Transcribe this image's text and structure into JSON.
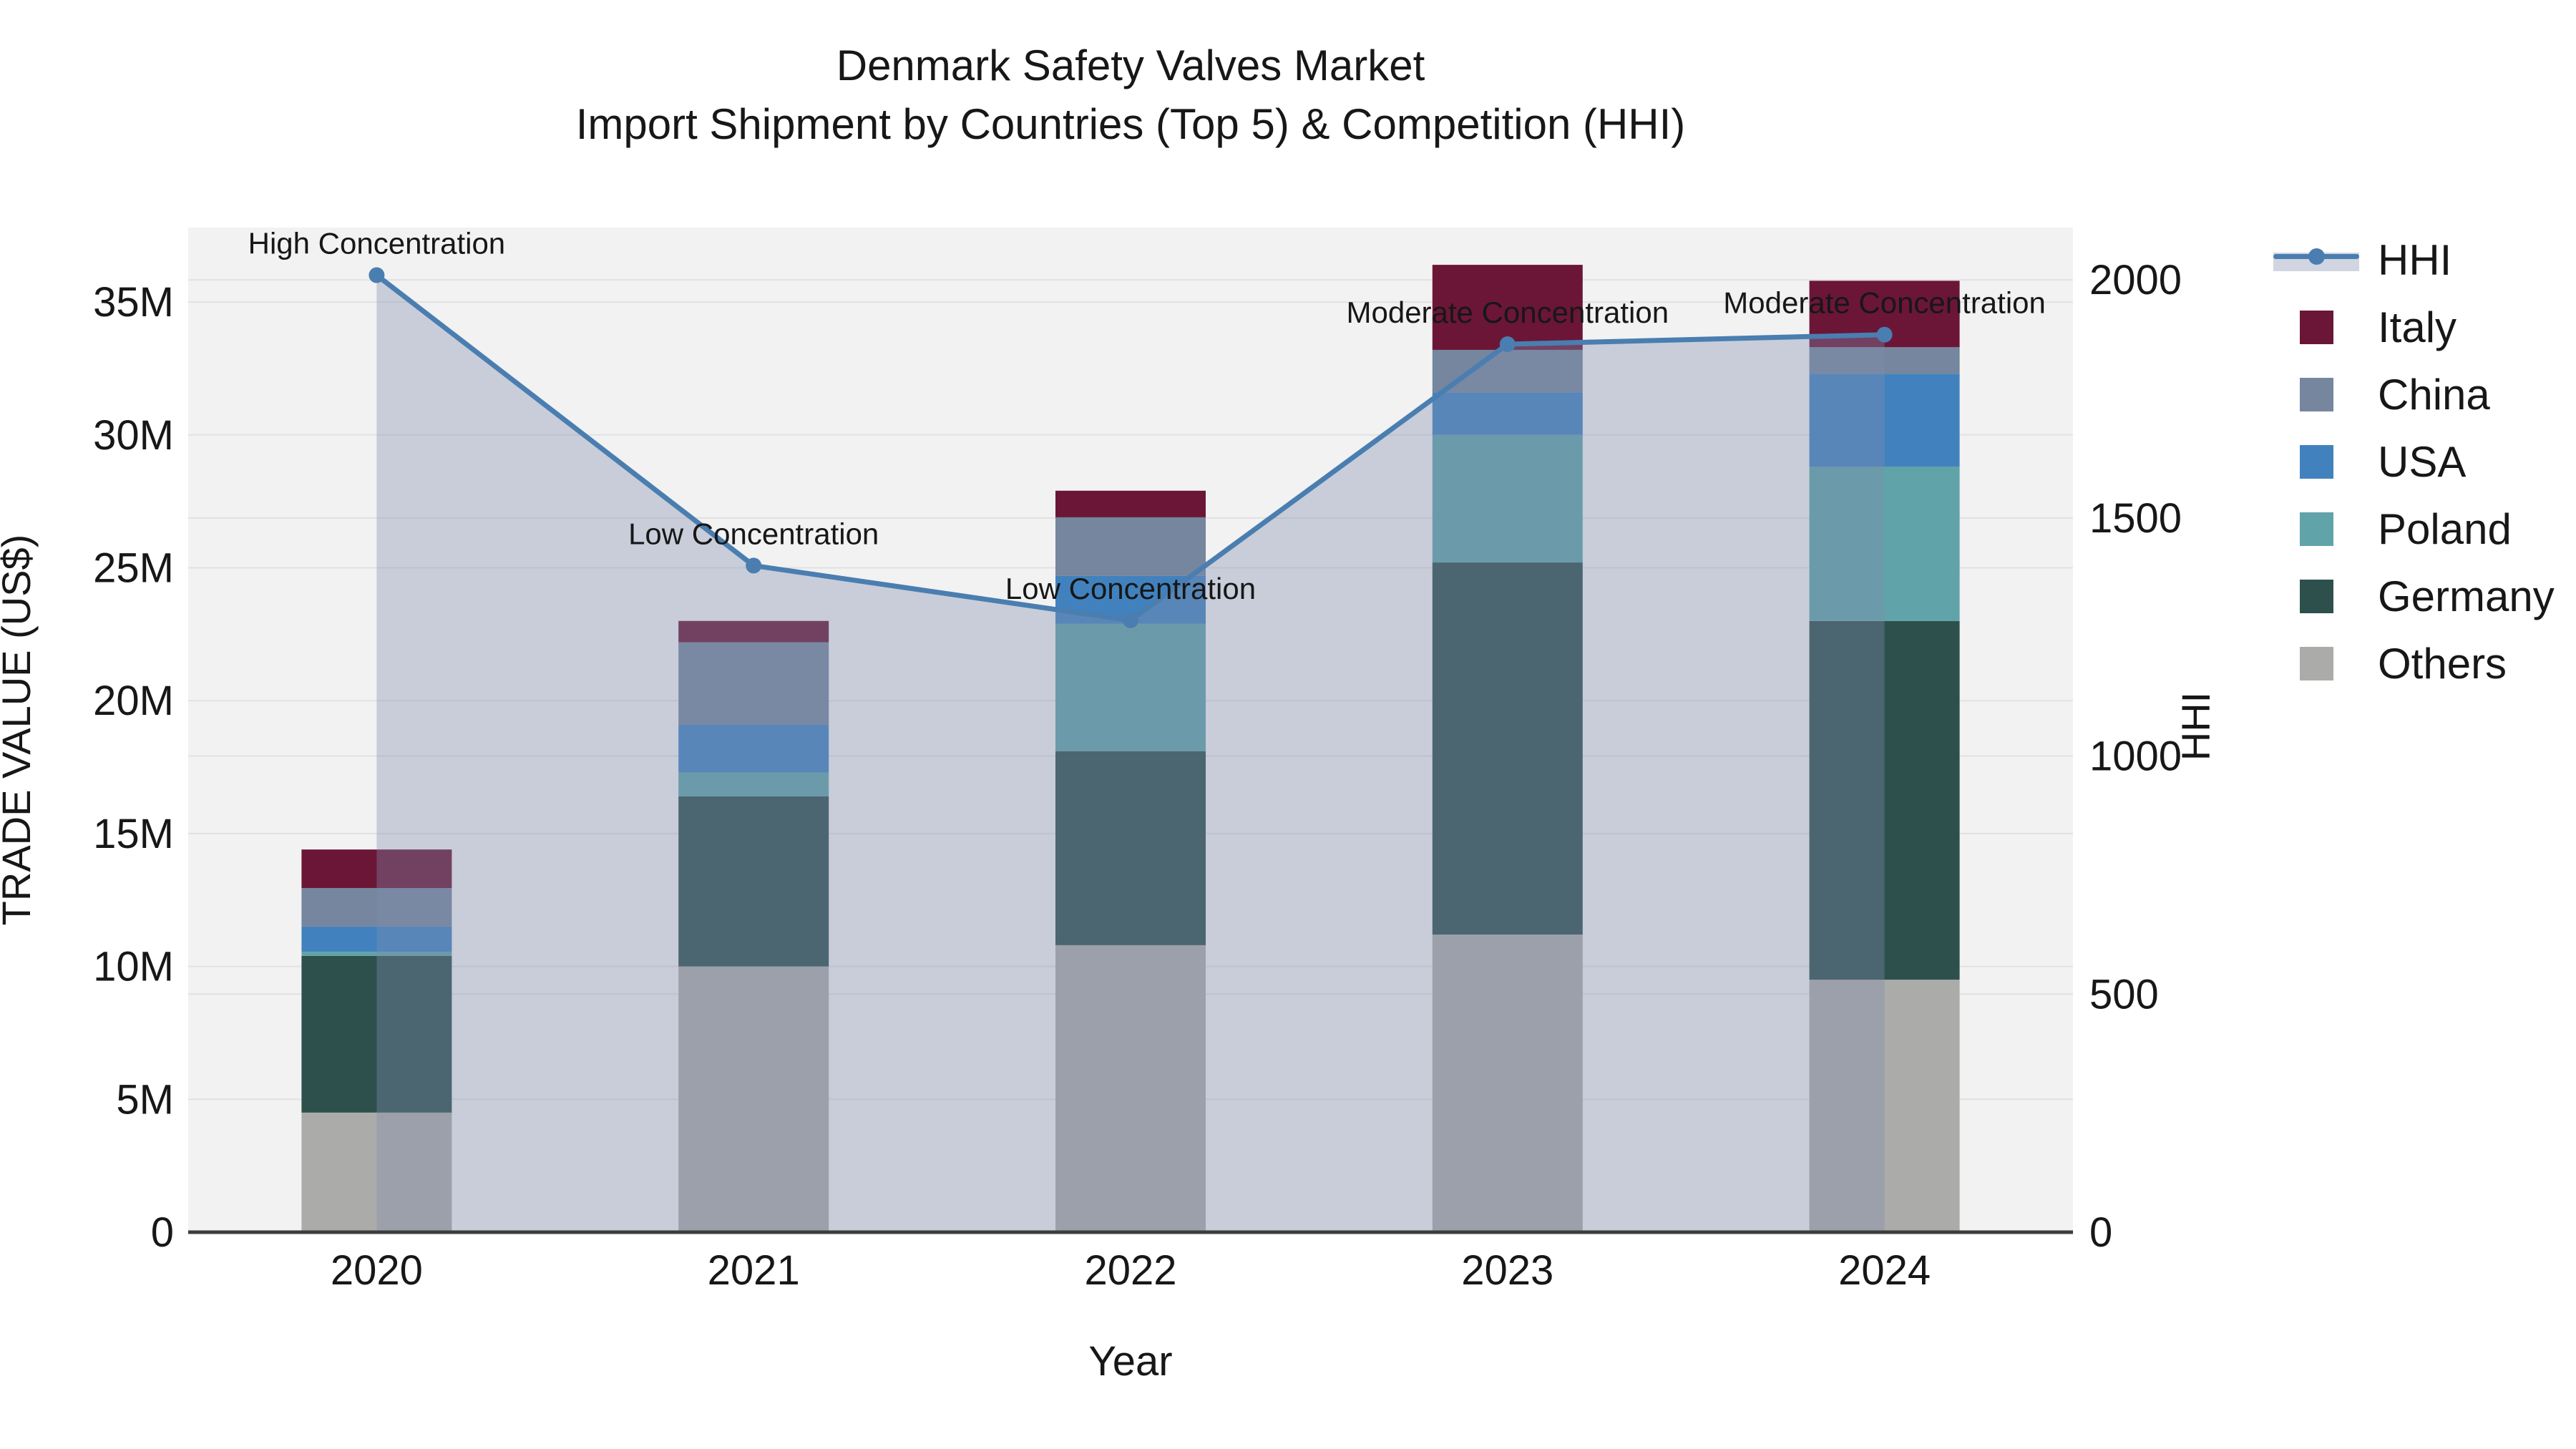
{
  "title": {
    "line1": "Denmark Safety Valves Market",
    "line2": "Import Shipment by Countries (Top 5) & Competition (HHI)"
  },
  "chart_data": {
    "type": "bar",
    "subtype": "stacked-bar-with-line-overlay",
    "categories": [
      "2020",
      "2021",
      "2022",
      "2023",
      "2024"
    ],
    "values_unit": "millions US$",
    "series": [
      {
        "name": "Others",
        "color": "#ABACA9",
        "values": [
          4.5,
          10.0,
          10.8,
          11.2,
          9.5
        ]
      },
      {
        "name": "Germany",
        "color": "#2D504D",
        "values": [
          5.9,
          6.4,
          7.3,
          14.0,
          13.5
        ]
      },
      {
        "name": "Poland",
        "color": "#60A3A8",
        "values": [
          0.15,
          0.9,
          4.8,
          4.8,
          5.8
        ]
      },
      {
        "name": "USA",
        "color": "#4182BE",
        "values": [
          0.95,
          1.8,
          1.8,
          1.6,
          3.5
        ]
      },
      {
        "name": "China",
        "color": "#75869E",
        "values": [
          1.45,
          3.1,
          2.2,
          1.6,
          1.0
        ]
      },
      {
        "name": "Italy",
        "color": "#6B1637",
        "values": [
          1.45,
          0.8,
          1.0,
          3.2,
          2.5
        ]
      }
    ],
    "line_series": {
      "name": "HHI",
      "color": "#4A7EB0",
      "area_fill": "rgba(128,142,174,0.37)",
      "values": [
        2010,
        1400,
        1285,
        1865,
        1885
      ]
    },
    "annotations": [
      "High Concentration",
      "Low Concentration",
      "Low Concentration",
      "Moderate Concentration",
      "Moderate Concentration"
    ],
    "xlabel": "Year",
    "ylabel_left": "TRADE VALUE (US$)",
    "ylabel_right": "HHI",
    "yticks_left": {
      "values": [
        0,
        5,
        10,
        15,
        20,
        25,
        30,
        35
      ],
      "labels": [
        "0",
        "5M",
        "10M",
        "15M",
        "20M",
        "25M",
        "30M",
        "35M"
      ]
    },
    "yticks_right": {
      "values": [
        0,
        500,
        1000,
        1500,
        2000
      ],
      "labels": [
        "0",
        "500",
        "1000",
        "1500",
        "2000"
      ]
    },
    "ylim_left": [
      0,
      37.8
    ],
    "ylim_right": [
      0,
      2110
    ],
    "grid": true,
    "legend_position": "right",
    "legend": [
      "HHI",
      "Italy",
      "China",
      "USA",
      "Poland",
      "Germany",
      "Others"
    ],
    "plot_background": "#F2F2F2",
    "gridline_color": "#E1E1E1",
    "axis_line_color": "#3D3D3D",
    "text_color": "#171717"
  }
}
